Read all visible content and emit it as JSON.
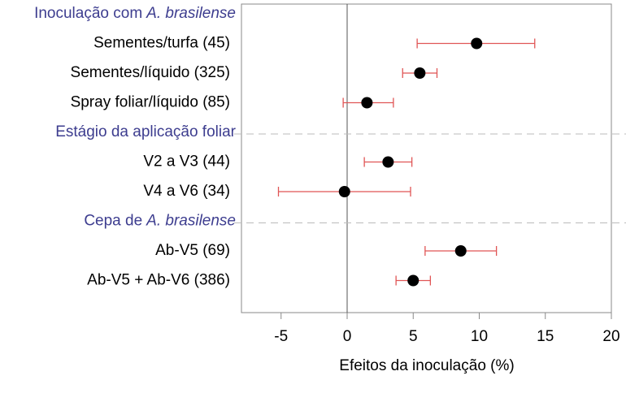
{
  "chart_data": {
    "type": "forest",
    "x_label": "Efeitos da inoculação (%)",
    "xlim": [
      -8,
      20
    ],
    "xticks": [
      -5,
      0,
      5,
      10,
      15,
      20
    ],
    "point_color": "#000000",
    "error_color": "#e05555",
    "header_color": "#3d3d8f",
    "groups": [
      {
        "title": {
          "text": "Inoculação com",
          "italic": "A. brasilense"
        },
        "items": [
          {
            "label": "Sementes/turfa (45)",
            "value": 9.8,
            "lower": 5.3,
            "upper": 14.2
          },
          {
            "label": "Sementes/líquido (325)",
            "value": 5.5,
            "lower": 4.2,
            "upper": 6.8
          },
          {
            "label": "Spray foliar/líquido (85)",
            "value": 1.5,
            "lower": -0.3,
            "upper": 3.5
          }
        ]
      },
      {
        "title": {
          "text": "Estágio da aplicação foliar"
        },
        "items": [
          {
            "label": "V2 a V3 (44)",
            "value": 3.1,
            "lower": 1.3,
            "upper": 4.9
          },
          {
            "label": "V4 a V6 (34)",
            "value": -0.2,
            "lower": -5.2,
            "upper": 4.8
          }
        ]
      },
      {
        "title": {
          "text": "Cepa de",
          "italic": "A. brasilense"
        },
        "items": [
          {
            "label": "Ab-V5 (69)",
            "value": 8.6,
            "lower": 5.9,
            "upper": 11.3
          },
          {
            "label": "Ab-V5 + Ab-V6 (386)",
            "value": 5.0,
            "lower": 3.7,
            "upper": 6.3
          }
        ]
      }
    ]
  }
}
